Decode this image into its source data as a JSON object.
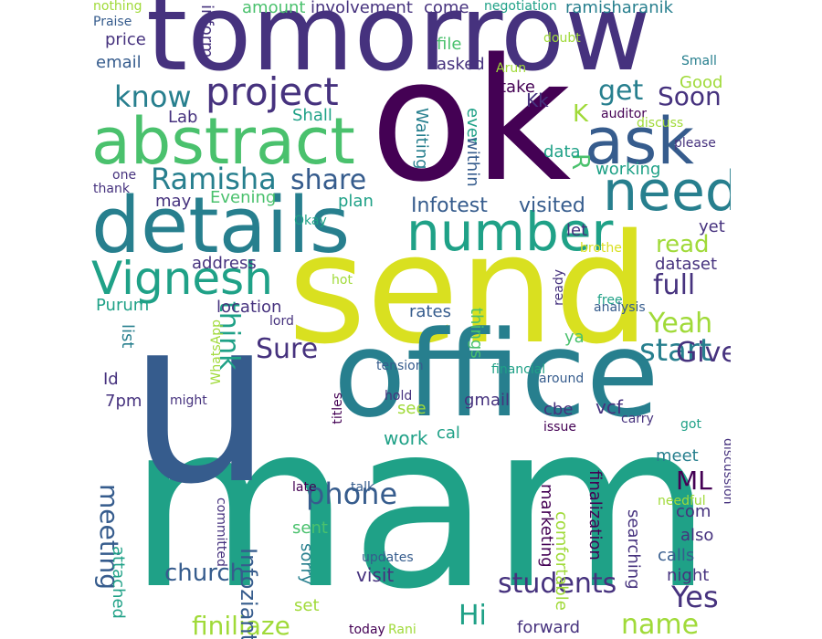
{
  "word_cloud": {
    "palette": [
      "#440154",
      "#46327e",
      "#365c8d",
      "#277f8e",
      "#1fa187",
      "#4ac16d",
      "#a0da39",
      "#d9e020"
    ],
    "words": [
      {
        "text": "mam"
      },
      {
        "text": "u"
      },
      {
        "text": "ok"
      },
      {
        "text": "send"
      },
      {
        "text": "office"
      },
      {
        "text": "tomorrow"
      },
      {
        "text": "details"
      },
      {
        "text": "abstract"
      },
      {
        "text": "ask"
      },
      {
        "text": "number"
      },
      {
        "text": "need"
      },
      {
        "text": "Vignesh"
      },
      {
        "text": "project"
      },
      {
        "text": "know"
      },
      {
        "text": "Ramisha"
      },
      {
        "text": "phone"
      },
      {
        "text": "students"
      },
      {
        "text": "church"
      },
      {
        "text": "meeting"
      },
      {
        "text": "share"
      },
      {
        "text": "full"
      },
      {
        "text": "start"
      },
      {
        "text": "Give"
      },
      {
        "text": "Yeah"
      },
      {
        "text": "Yes"
      },
      {
        "text": "Sure"
      },
      {
        "text": "think"
      },
      {
        "text": "Hi"
      },
      {
        "text": "name"
      },
      {
        "text": "finiliaze"
      },
      {
        "text": "ML"
      },
      {
        "text": "get"
      },
      {
        "text": "Soon"
      },
      {
        "text": "read"
      },
      {
        "text": "Infotest"
      },
      {
        "text": "visited"
      },
      {
        "text": "Kk"
      },
      {
        "text": "K"
      },
      {
        "text": "R"
      },
      {
        "text": "Infoziant"
      },
      {
        "text": "visit"
      },
      {
        "text": "work"
      },
      {
        "text": "location"
      },
      {
        "text": "attached"
      },
      {
        "text": "email"
      },
      {
        "text": "price"
      },
      {
        "text": "amount"
      },
      {
        "text": "involvement"
      },
      {
        "text": "come"
      },
      {
        "text": "ramisharanik"
      },
      {
        "text": "inform"
      },
      {
        "text": "file"
      },
      {
        "text": "asked"
      },
      {
        "text": "take"
      },
      {
        "text": "Good"
      },
      {
        "text": "Shall"
      },
      {
        "text": "Lab"
      },
      {
        "text": "Waiting"
      },
      {
        "text": "ever"
      },
      {
        "text": "within"
      },
      {
        "text": "data"
      },
      {
        "text": "working"
      },
      {
        "text": "Evening"
      },
      {
        "text": "plan"
      },
      {
        "text": "may"
      },
      {
        "text": "let"
      },
      {
        "text": "yet"
      },
      {
        "text": "dataset"
      },
      {
        "text": "address"
      },
      {
        "text": "Purum"
      },
      {
        "text": "rates"
      },
      {
        "text": "things"
      },
      {
        "text": "list"
      },
      {
        "text": "ya"
      },
      {
        "text": "Id"
      },
      {
        "text": "7pm"
      },
      {
        "text": "gmail"
      },
      {
        "text": "cbe"
      },
      {
        "text": "vcf"
      },
      {
        "text": "see"
      },
      {
        "text": "cal"
      },
      {
        "text": "meet"
      },
      {
        "text": "com"
      },
      {
        "text": "also"
      },
      {
        "text": "calls"
      },
      {
        "text": "night"
      },
      {
        "text": "sent"
      },
      {
        "text": "sorry"
      },
      {
        "text": "set"
      },
      {
        "text": "marketing"
      },
      {
        "text": "comfortable"
      },
      {
        "text": "finalization"
      },
      {
        "text": "searching"
      },
      {
        "text": "forward"
      },
      {
        "text": "Rani"
      },
      {
        "text": "updates"
      },
      {
        "text": "committed"
      },
      {
        "text": "late"
      },
      {
        "text": "talk"
      },
      {
        "text": "today"
      },
      {
        "text": "discussion"
      },
      {
        "text": "needful"
      },
      {
        "text": "got"
      },
      {
        "text": "carry"
      },
      {
        "text": "issue"
      },
      {
        "text": "around"
      },
      {
        "text": "financial"
      },
      {
        "text": "titles"
      },
      {
        "text": "hold"
      },
      {
        "text": "tension"
      },
      {
        "text": "might"
      },
      {
        "text": "WhatsApp"
      },
      {
        "text": "lord"
      },
      {
        "text": "hot"
      },
      {
        "text": "ready"
      },
      {
        "text": "free"
      },
      {
        "text": "analysis"
      },
      {
        "text": "brother"
      },
      {
        "text": "Okay"
      },
      {
        "text": "one"
      },
      {
        "text": "thank"
      },
      {
        "text": "nothing"
      },
      {
        "text": "Praise"
      },
      {
        "text": "negotiation"
      },
      {
        "text": "doubt"
      },
      {
        "text": "Arun"
      },
      {
        "text": "Small"
      },
      {
        "text": "auditor"
      },
      {
        "text": "discuss"
      },
      {
        "text": "please"
      }
    ]
  }
}
